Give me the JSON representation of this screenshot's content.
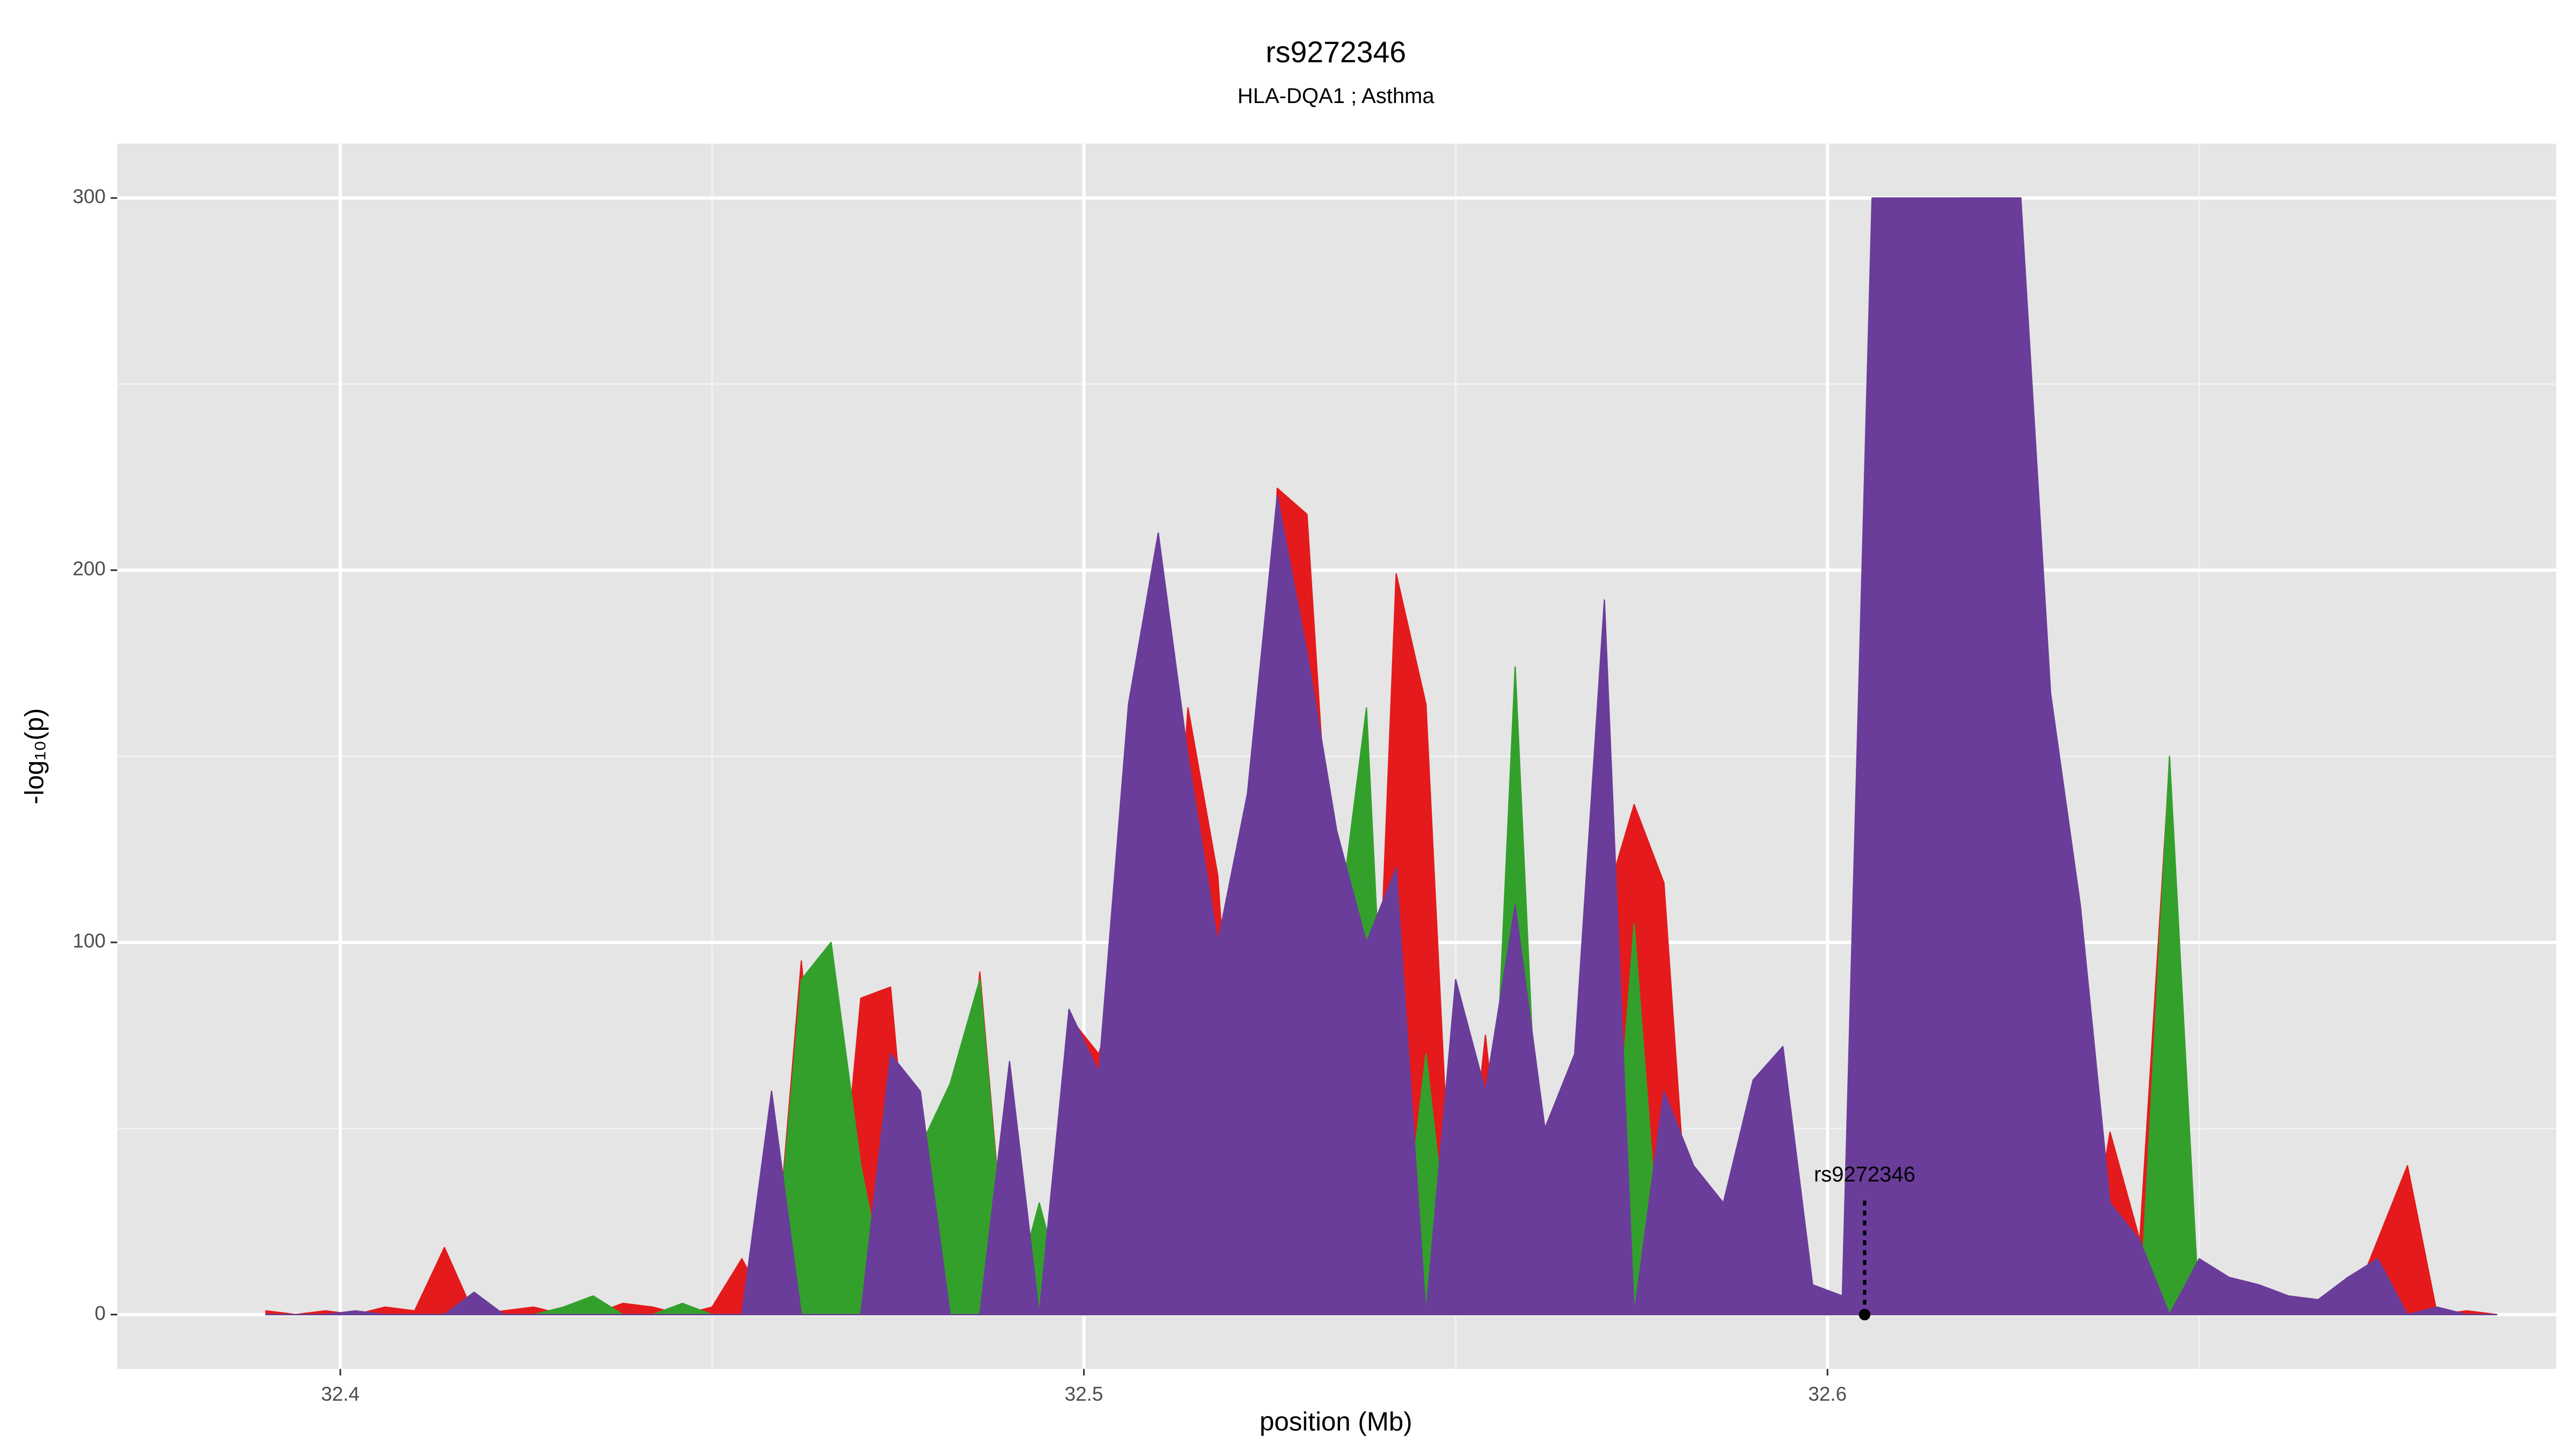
{
  "chart_data": {
    "type": "area",
    "title": "rs9272346",
    "subtitle": "HLA-DQA1 ; Asthma",
    "xlabel": "position (Mb)",
    "ylabel": "-log₁₀(p)",
    "x": [
      32.39,
      32.394,
      32.398,
      32.402,
      32.406,
      32.41,
      32.414,
      32.418,
      32.422,
      32.426,
      32.43,
      32.434,
      32.438,
      32.442,
      32.446,
      32.45,
      32.454,
      32.458,
      32.462,
      32.466,
      32.47,
      32.474,
      32.478,
      32.482,
      32.486,
      32.49,
      32.494,
      32.498,
      32.502,
      32.506,
      32.51,
      32.514,
      32.518,
      32.522,
      32.526,
      32.53,
      32.534,
      32.538,
      32.542,
      32.546,
      32.55,
      32.554,
      32.558,
      32.562,
      32.566,
      32.57,
      32.574,
      32.578,
      32.582,
      32.586,
      32.59,
      32.594,
      32.598,
      32.602,
      32.606,
      32.61,
      32.614,
      32.618,
      32.622,
      32.626,
      32.63,
      32.634,
      32.638,
      32.642,
      32.646,
      32.65,
      32.654,
      32.658,
      32.662,
      32.666,
      32.67,
      32.674,
      32.678,
      32.682,
      32.686,
      32.69
    ],
    "series": [
      {
        "color": "#e41a1c",
        "values": [
          1,
          0,
          1,
          0,
          2,
          1,
          18,
          0,
          1,
          2,
          0,
          0,
          3,
          2,
          0,
          2,
          15,
          0,
          95,
          0,
          85,
          88,
          0,
          0,
          92,
          0,
          0,
          80,
          70,
          97,
          45,
          163,
          118,
          0,
          222,
          215,
          90,
          0,
          199,
          164,
          0,
          75,
          0,
          40,
          0,
          110,
          137,
          116,
          0,
          0,
          0,
          0,
          0,
          0,
          0,
          300,
          0,
          300,
          300,
          300,
          60,
          0,
          49,
          20,
          148,
          0,
          0,
          0,
          0,
          0,
          0,
          20,
          40,
          0,
          1,
          0
        ]
      },
      {
        "color": "#33a02c",
        "values": [
          0,
          0,
          0,
          0,
          0,
          0,
          0,
          0,
          0,
          0,
          2,
          5,
          0,
          0,
          3,
          0,
          0,
          0,
          90,
          100,
          40,
          0,
          45,
          62,
          90,
          0,
          30,
          0,
          0,
          0,
          0,
          0,
          0,
          50,
          200,
          0,
          100,
          163,
          0,
          70,
          0,
          0,
          174,
          0,
          0,
          0,
          105,
          0,
          0,
          20,
          43,
          45,
          0,
          0,
          0,
          0,
          191,
          300,
          300,
          300,
          0,
          0,
          0,
          0,
          150,
          0,
          0,
          0,
          0,
          0,
          0,
          0,
          0,
          0,
          0,
          0
        ]
      },
      {
        "color": "#6a3d9a",
        "values": [
          0,
          0,
          0,
          1,
          0,
          0,
          0,
          6,
          0,
          0,
          0,
          0,
          0,
          0,
          0,
          0,
          0,
          60,
          0,
          0,
          0,
          70,
          60,
          0,
          0,
          68,
          0,
          82,
          65,
          164,
          210,
          150,
          100,
          140,
          220,
          178,
          130,
          100,
          120,
          0,
          90,
          60,
          110,
          50,
          70,
          192,
          0,
          60,
          40,
          30,
          63,
          72,
          8,
          5,
          300,
          300,
          300,
          300,
          300,
          300,
          167,
          110,
          30,
          20,
          0,
          15,
          10,
          8,
          5,
          4,
          10,
          15,
          0,
          2,
          0,
          0
        ]
      }
    ],
    "annotation": {
      "text": "rs9272346",
      "x": 32.605,
      "y": 0
    },
    "xlim": [
      32.37,
      32.698
    ],
    "ylim": [
      -14.6,
      314.6
    ],
    "xticks": [
      32.4,
      32.5,
      32.6
    ],
    "yticks": [
      0,
      100,
      200,
      300
    ],
    "xminorticks": [
      32.45,
      32.55,
      32.65
    ],
    "yminorticks": [
      50,
      150,
      250
    ],
    "grid": true
  }
}
